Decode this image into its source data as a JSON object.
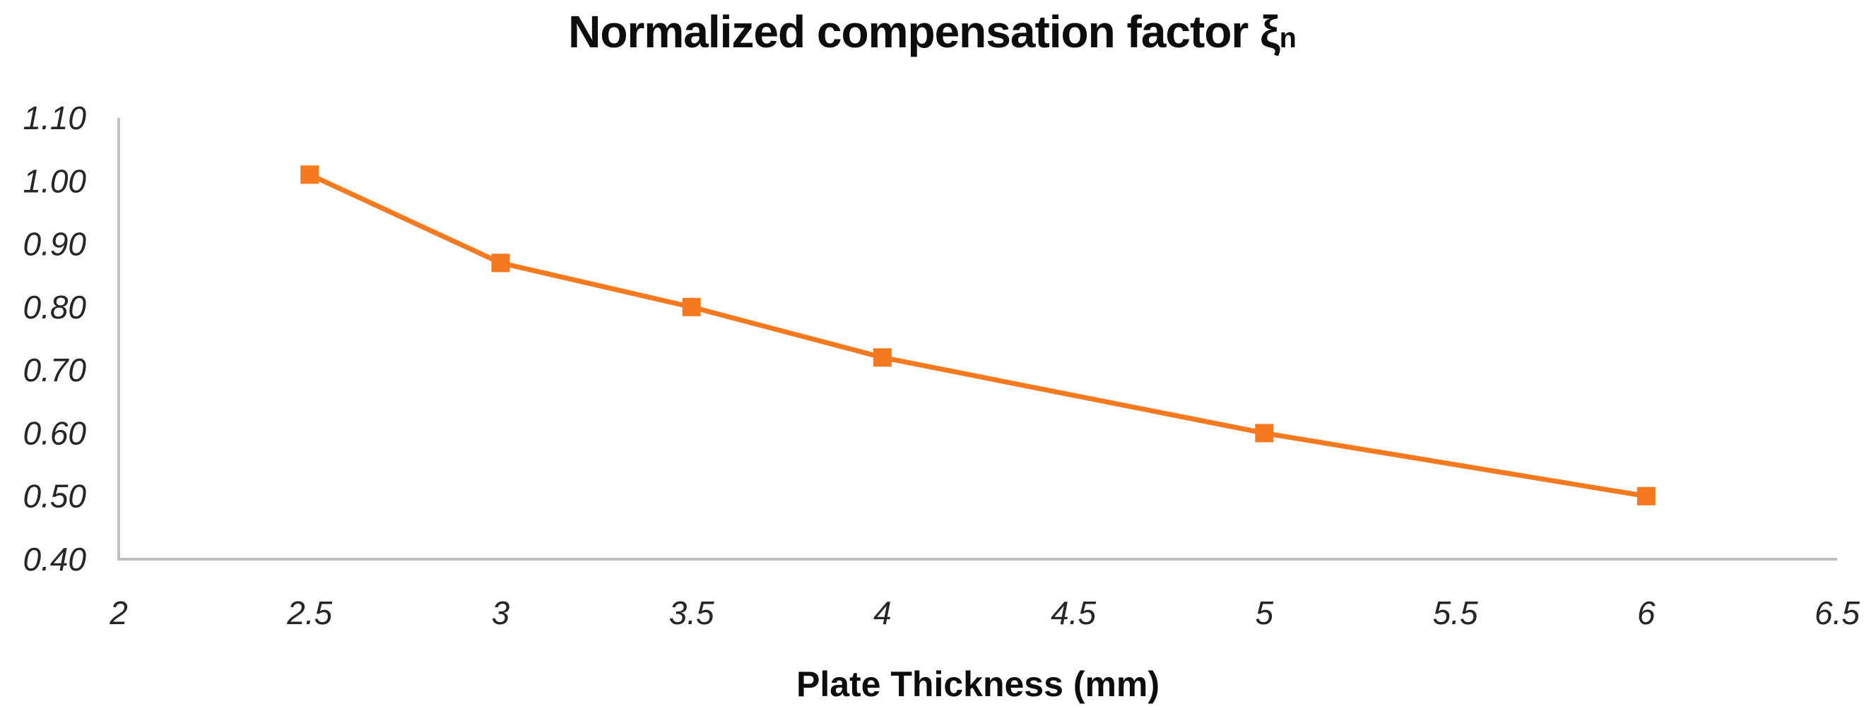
{
  "chart_data": {
    "type": "line",
    "title": "Normalized compensation factor ξn",
    "title_main": "Normalized compensation factor ξ",
    "title_sub": "n",
    "xlabel": "Plate Thickness (mm)",
    "ylabel": "",
    "x": [
      2.5,
      3,
      3.5,
      4,
      5,
      6
    ],
    "y": [
      1.01,
      0.87,
      0.8,
      0.72,
      0.6,
      0.5
    ],
    "xlim": [
      2,
      6.5
    ],
    "ylim": [
      0.4,
      1.1
    ],
    "x_ticks": [
      2,
      2.5,
      3,
      3.5,
      4,
      4.5,
      5,
      5.5,
      6,
      6.5
    ],
    "x_tick_labels": [
      "2",
      "2.5",
      "3",
      "3.5",
      "4",
      "4.5",
      "5",
      "5.5",
      "6",
      "6.5"
    ],
    "y_ticks": [
      1.1,
      1.0,
      0.9,
      0.8,
      0.7,
      0.6,
      0.5,
      0.4
    ],
    "y_tick_labels": [
      "1.10",
      "1.00",
      "0.90",
      "0.80",
      "0.70",
      "0.60",
      "0.50",
      "0.40"
    ],
    "grid": false,
    "legend": "none",
    "marker": "square",
    "colors": {
      "line": "#F5791F",
      "axis": "#BFBFBF",
      "tick_text": "#262626"
    }
  }
}
